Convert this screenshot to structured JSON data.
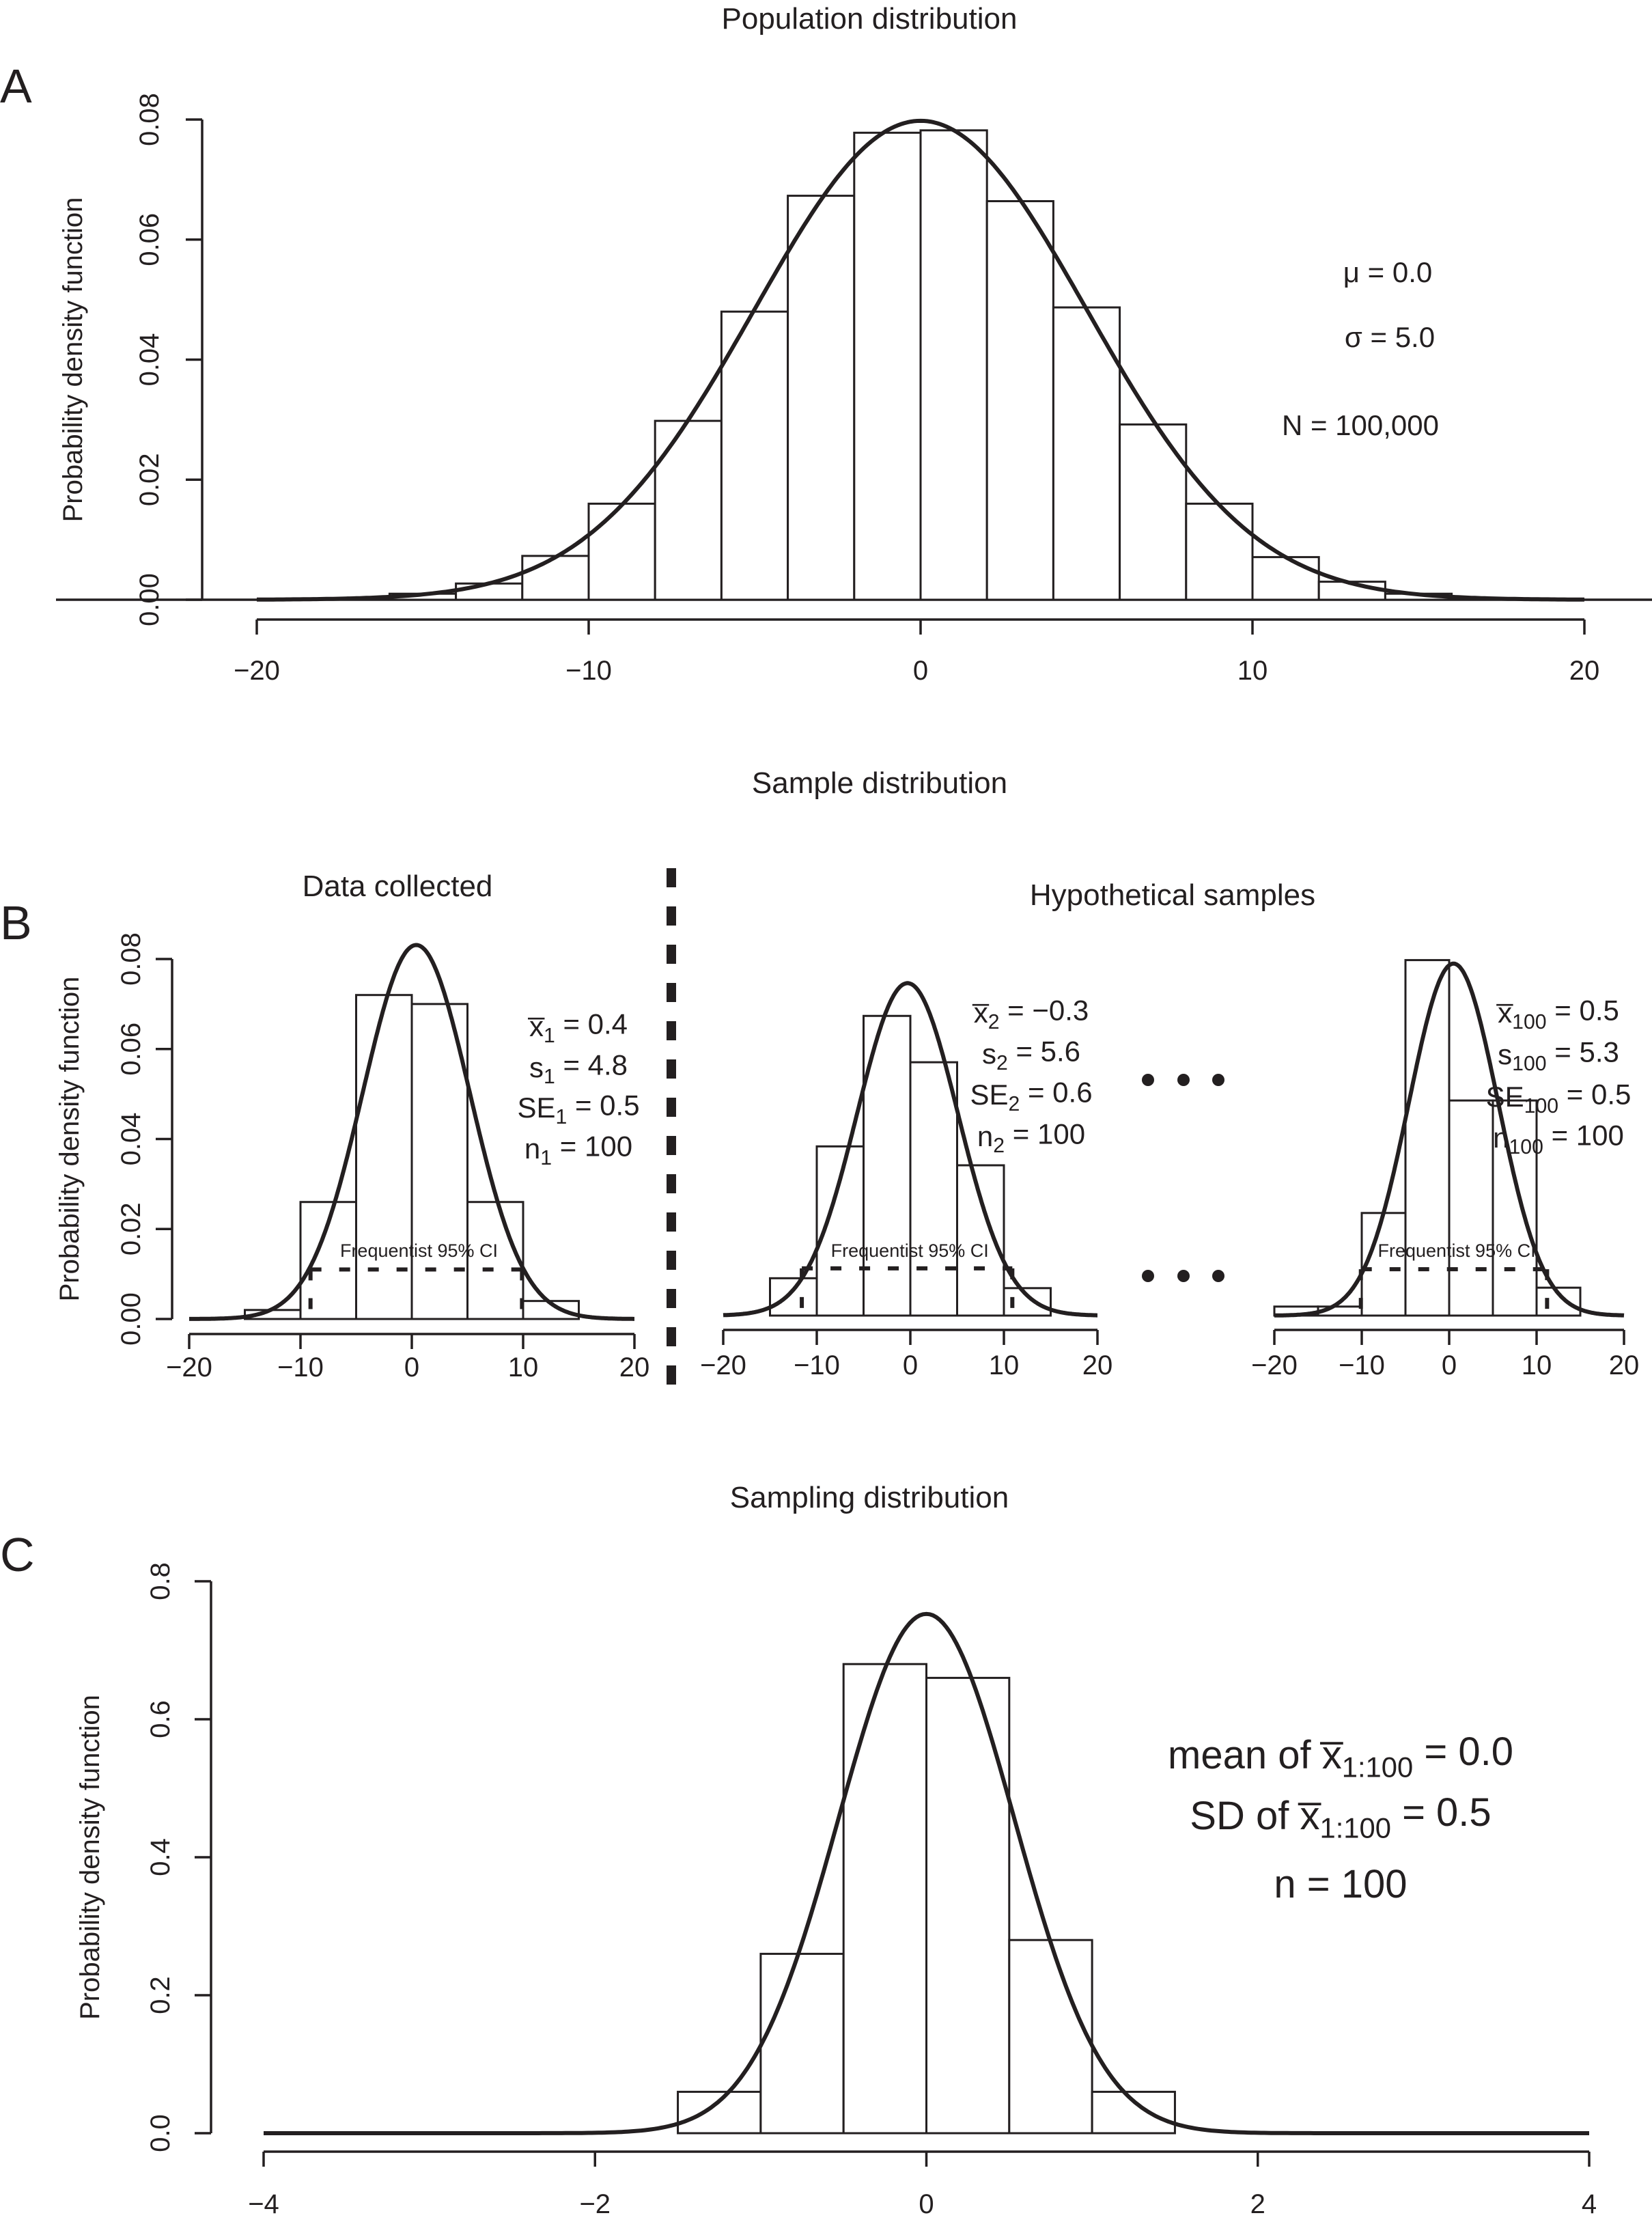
{
  "chart_data": [
    {
      "id": "A",
      "panel_label": "A",
      "type": "bar",
      "title": "Population distribution",
      "xlabel": "",
      "ylabel": "Probability density function",
      "xlim": [
        -20,
        20
      ],
      "ylim": [
        0,
        0.08
      ],
      "xticks": [
        -20,
        -10,
        0,
        10,
        20
      ],
      "xtick_labels": [
        "−20",
        "−10",
        "0",
        "10",
        "20"
      ],
      "yticks": [
        0,
        0.02,
        0.04,
        0.06,
        0.08
      ],
      "ytick_labels": [
        "0.00",
        "0.02",
        "0.04",
        "0.06",
        "0.08"
      ],
      "bins": [
        -16,
        -14,
        -12,
        -10,
        -8,
        -6,
        -4,
        -2,
        0,
        2,
        4,
        6,
        8,
        10,
        12,
        14,
        16
      ],
      "values": [
        0.001,
        0.0027,
        0.0073,
        0.016,
        0.0298,
        0.048,
        0.0673,
        0.0778,
        0.0782,
        0.0664,
        0.0487,
        0.0292,
        0.016,
        0.0071,
        0.003,
        0.001
      ],
      "curve": {
        "type": "normal",
        "mean": 0.0,
        "sd": 5.0,
        "range": [
          -20,
          20
        ]
      },
      "annotations": [
        "μ = 0.0",
        "σ = 5.0",
        "N = 100,000"
      ]
    },
    {
      "id": "B1",
      "panel_label": "B",
      "section_title": "Sample distribution",
      "type": "bar",
      "title": "Data collected",
      "ylabel": "Probability density function",
      "xlim": [
        -20,
        20
      ],
      "ylim": [
        0,
        0.08
      ],
      "xticks": [
        -20,
        -10,
        0,
        10,
        20
      ],
      "xtick_labels": [
        "−20",
        "−10",
        "0",
        "10",
        "20"
      ],
      "yticks": [
        0,
        0.02,
        0.04,
        0.06,
        0.08
      ],
      "ytick_labels": [
        "0.00",
        "0.02",
        "0.04",
        "0.06",
        "0.08"
      ],
      "bins": [
        -15,
        -10,
        -5,
        0,
        5,
        10,
        15
      ],
      "values": [
        0.002,
        0.026,
        0.072,
        0.07,
        0.026,
        0.004
      ],
      "curve": {
        "type": "normal",
        "mean": 0.4,
        "sd": 4.8,
        "range": [
          -20,
          20
        ]
      },
      "ci": {
        "label": "Frequentist 95% CI",
        "lower": -9.1,
        "upper": 9.9,
        "height": 0.011
      },
      "stats": [
        {
          "base": "x̅",
          "sub": "1",
          "rest": " = 0.4"
        },
        {
          "base": "s",
          "sub": "1",
          "rest": " = 4.8"
        },
        {
          "base": "SE",
          "sub": "1",
          "rest": " = 0.5"
        },
        {
          "base": "n",
          "sub": "1",
          "rest": " = 100"
        }
      ]
    },
    {
      "id": "B2",
      "type": "bar",
      "group_title": "Hypothetical samples",
      "xlim": [
        -20,
        20
      ],
      "ylim": [
        0,
        0.08
      ],
      "xticks": [
        -20,
        -10,
        0,
        10,
        20
      ],
      "xtick_labels": [
        "−20",
        "−10",
        "0",
        "10",
        "20"
      ],
      "bins": [
        -15,
        -10,
        -5,
        0,
        5,
        10,
        15
      ],
      "values": [
        0.0083,
        0.0376,
        0.0666,
        0.0563,
        0.0334,
        0.0061
      ],
      "curve": {
        "type": "normal",
        "mean": -0.3,
        "sd": 5.4,
        "range": [
          -20,
          20
        ]
      },
      "ci": {
        "label": "Frequentist 95% CI",
        "lower": -11.6,
        "upper": 10.9,
        "height": 0.0105
      },
      "stats": [
        {
          "base": "x̅",
          "sub": "2",
          "rest": " = −0.3"
        },
        {
          "base": "s",
          "sub": "2",
          "rest": " = 5.6"
        },
        {
          "base": "SE",
          "sub": "2",
          "rest": " = 0.6"
        },
        {
          "base": "n",
          "sub": "2",
          "rest": " = 100"
        }
      ]
    },
    {
      "id": "B3",
      "type": "bar",
      "xlim": [
        -20,
        20
      ],
      "ylim": [
        0,
        0.08
      ],
      "xticks": [
        -20,
        -10,
        0,
        10,
        20
      ],
      "xtick_labels": [
        "−20",
        "−10",
        "0",
        "10",
        "20"
      ],
      "bins": [
        -20,
        -15,
        -10,
        -5,
        0,
        5,
        10,
        15
      ],
      "values": [
        0.002,
        0.002,
        0.0228,
        0.079,
        0.0478,
        0.0478,
        0.0062
      ],
      "curve": {
        "type": "normal",
        "mean": 0.5,
        "sd": 5.1,
        "range": [
          -20,
          20
        ]
      },
      "ci": {
        "label": "Frequentist 95% CI",
        "lower": -10.1,
        "upper": 11.2,
        "height": 0.0103
      },
      "stats": [
        {
          "base": "x̅",
          "sub": "100",
          "rest": " = 0.5"
        },
        {
          "base": "s",
          "sub": "100",
          "rest": " = 5.3"
        },
        {
          "base": "SE",
          "sub": "100",
          "rest": " = 0.5"
        },
        {
          "base": "n",
          "sub": "100",
          "rest": " = 100"
        }
      ]
    },
    {
      "id": "C",
      "panel_label": "C",
      "type": "bar",
      "title": "Sampling distribution",
      "ylabel": "Probability density function",
      "xlim": [
        -4,
        4
      ],
      "ylim": [
        0,
        0.8
      ],
      "xticks": [
        -4,
        -2,
        0,
        2,
        4
      ],
      "xtick_labels": [
        "−4",
        "−2",
        "0",
        "2",
        "4"
      ],
      "yticks": [
        0,
        0.2,
        0.4,
        0.6,
        0.8
      ],
      "ytick_labels": [
        "0.0",
        "0.2",
        "0.4",
        "0.6",
        "0.8"
      ],
      "bins": [
        -1.5,
        -1.0,
        -0.5,
        0,
        0.5,
        1.0,
        1.5
      ],
      "values": [
        0.06,
        0.26,
        0.68,
        0.66,
        0.28,
        0.06
      ],
      "curve": {
        "type": "normal",
        "mean": 0.0,
        "sd": 0.53,
        "range": [
          -4,
          4
        ]
      },
      "stats": [
        {
          "pre": "mean of  ",
          "base": "x̅",
          "sub": "1:100",
          "rest": " = 0.0"
        },
        {
          "pre": "SD of  ",
          "base": "x̅",
          "sub": "1:100",
          "rest": " = 0.5"
        },
        {
          "pre": "n = 100",
          "base": "",
          "sub": "",
          "rest": ""
        }
      ]
    }
  ],
  "ellipsis": "• • •"
}
